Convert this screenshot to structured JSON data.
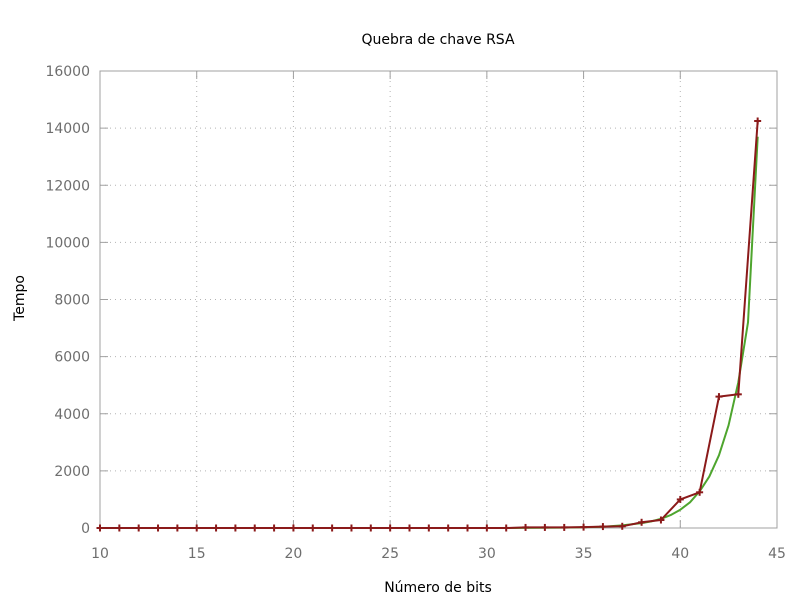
{
  "chart_data": {
    "type": "line",
    "title": "Quebra de chave RSA",
    "xlabel": "Número de bits",
    "ylabel": "Tempo",
    "xlim": [
      10,
      45
    ],
    "ylim": [
      0,
      16000
    ],
    "xticks": [
      10,
      15,
      20,
      25,
      30,
      35,
      40,
      45
    ],
    "yticks": [
      0,
      2000,
      4000,
      6000,
      8000,
      10000,
      12000,
      14000,
      16000
    ],
    "grid": true,
    "legend": "none",
    "series": [
      {
        "color": "#8b1a1a",
        "marker": "plus",
        "x": [
          10,
          11,
          12,
          13,
          14,
          15,
          16,
          17,
          18,
          19,
          20,
          21,
          22,
          23,
          24,
          25,
          26,
          27,
          28,
          29,
          30,
          31,
          32,
          33,
          34,
          35,
          36,
          37,
          38,
          39,
          40,
          41,
          42,
          43,
          44
        ],
        "y": [
          0,
          0,
          0,
          0,
          0,
          0,
          0,
          0,
          0,
          0,
          0,
          0,
          0,
          0,
          0,
          0,
          0,
          0,
          0,
          0,
          0,
          0,
          20,
          20,
          20,
          30,
          50,
          60,
          200,
          280,
          1000,
          1250,
          4600,
          4680,
          14250
        ]
      },
      {
        "color": "#4ea52e",
        "marker": "none",
        "x": [
          10,
          30,
          32,
          34,
          35,
          36,
          37,
          38,
          38.5,
          39,
          39.5,
          40,
          40.5,
          41,
          41.5,
          42,
          42.5,
          43,
          43.5,
          44
        ],
        "y": [
          0,
          0,
          5,
          15,
          25,
          45,
          90,
          170,
          230,
          320,
          450,
          640,
          900,
          1280,
          1800,
          2550,
          3600,
          5100,
          7200,
          13700
        ]
      }
    ]
  }
}
